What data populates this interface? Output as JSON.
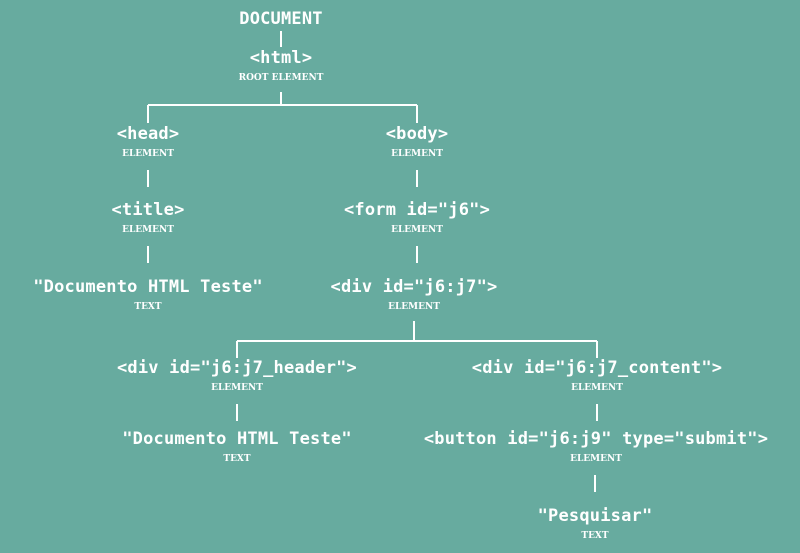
{
  "colors": {
    "background": "#67ab9f",
    "foreground": "#ffffff"
  },
  "tree": {
    "document": {
      "label": "DOCUMENT"
    },
    "html": {
      "label": "<html>",
      "type": "ROOT ELEMENT"
    },
    "head": {
      "label": "<head>",
      "type": "ELEMENT"
    },
    "body": {
      "label": "<body>",
      "type": "ELEMENT"
    },
    "title": {
      "label": "<title>",
      "type": "ELEMENT"
    },
    "title_text": {
      "label": "\"Documento HTML Teste\"",
      "type": "TEXT"
    },
    "form": {
      "label": "<form id=\"j6\">",
      "type": "ELEMENT"
    },
    "div_j7": {
      "label": "<div id=\"j6:j7\">",
      "type": "ELEMENT"
    },
    "div_header": {
      "label": "<div id=\"j6:j7_header\">",
      "type": "ELEMENT"
    },
    "header_text": {
      "label": "\"Documento HTML Teste\"",
      "type": "TEXT"
    },
    "div_content": {
      "label": "<div id=\"j6:j7_content\">",
      "type": "ELEMENT"
    },
    "button": {
      "label": "<button id=\"j6:j9\" type=\"submit\">",
      "type": "ELEMENT"
    },
    "button_text": {
      "label": "\"Pesquisar\"",
      "type": "TEXT"
    }
  }
}
